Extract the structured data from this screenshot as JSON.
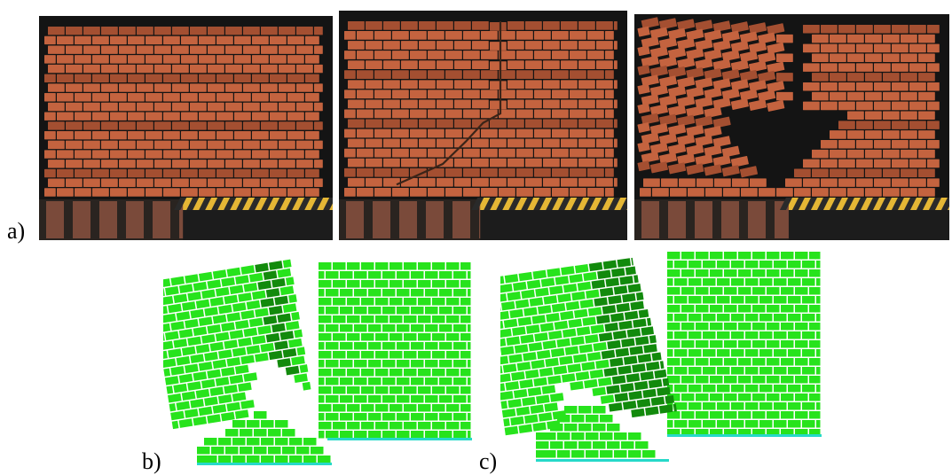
{
  "figure": {
    "labels": {
      "a": "a)",
      "b": "b)",
      "c": "c)"
    },
    "photos": [
      {
        "state": "intact"
      },
      {
        "state": "stepped-cracks"
      },
      {
        "state": "collapse"
      }
    ],
    "simulations": [
      {
        "state": "rocking-left-block"
      },
      {
        "state": "diagonal-shear-failure"
      }
    ],
    "colors": {
      "brick": "#c4633f",
      "brick_dark": "#a44f31",
      "mortar_gap": "#3a2418",
      "background_photo": "#141414",
      "hazard_yellow": "#e5b735",
      "hazard_dark": "#2a2a2a",
      "sim_green": "#27e31c",
      "sim_green_dark": "#128a0c",
      "sim_base": "#26d9c9"
    }
  }
}
